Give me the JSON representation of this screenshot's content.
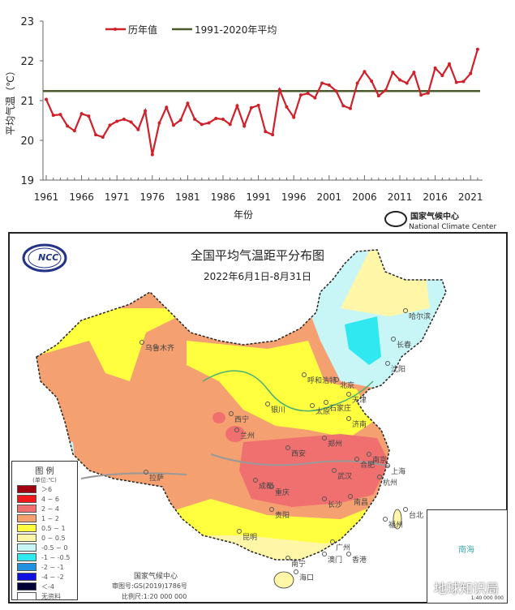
{
  "chart_data": {
    "type": "line",
    "ylabel": "平均气温（℃）",
    "xlabel": "年份",
    "ylim": [
      19,
      23
    ],
    "yticks": [
      19,
      20,
      21,
      22,
      23
    ],
    "xticks": [
      1961,
      1966,
      1971,
      1976,
      1981,
      1986,
      1991,
      1996,
      2001,
      2006,
      2011,
      2016,
      2021
    ],
    "grid": false,
    "legend_position": "top",
    "x": [
      1961,
      1962,
      1963,
      1964,
      1965,
      1966,
      1967,
      1968,
      1969,
      1970,
      1971,
      1972,
      1973,
      1974,
      1975,
      1976,
      1977,
      1978,
      1979,
      1980,
      1981,
      1982,
      1983,
      1984,
      1985,
      1986,
      1987,
      1988,
      1989,
      1990,
      1991,
      1992,
      1993,
      1994,
      1995,
      1996,
      1997,
      1998,
      1999,
      2000,
      2001,
      2002,
      2003,
      2004,
      2005,
      2006,
      2007,
      2008,
      2009,
      2010,
      2011,
      2012,
      2013,
      2014,
      2015,
      2016,
      2017,
      2018,
      2019,
      2020,
      2021,
      2022
    ],
    "series": [
      {
        "name": "历年值",
        "color": "#d0202a",
        "values": [
          21.03,
          20.63,
          20.65,
          20.36,
          20.24,
          20.67,
          20.61,
          20.14,
          20.08,
          20.38,
          20.48,
          20.53,
          20.46,
          20.27,
          20.74,
          19.64,
          20.44,
          20.83,
          20.38,
          20.51,
          20.93,
          20.53,
          20.4,
          20.44,
          20.55,
          20.53,
          20.4,
          20.87,
          20.36,
          20.82,
          20.88,
          20.22,
          20.14,
          21.27,
          20.84,
          20.58,
          21.14,
          21.18,
          21.07,
          21.44,
          21.39,
          21.24,
          20.87,
          20.8,
          21.44,
          21.73,
          21.49,
          21.12,
          21.26,
          21.71,
          21.52,
          21.44,
          21.71,
          21.14,
          21.19,
          21.82,
          21.63,
          21.92,
          21.46,
          21.48,
          21.68,
          22.29
        ]
      },
      {
        "name": "1991-2020年平均",
        "color": "#4a5a2a",
        "constant": 21.24
      }
    ]
  },
  "chart_logo": {
    "name_cn": "国家气候中心",
    "name_en": "National Climate Center"
  },
  "map": {
    "title": "全国平均气温距平分布图",
    "subtitle": "2022年6月1日-8月31日",
    "logo_text": "NCC",
    "legend": {
      "title": "图 例",
      "unit": "(单位:℃)",
      "items": [
        {
          "label": "＞6",
          "color": "#a00010"
        },
        {
          "label": "4 ~ 6",
          "color": "#f01818"
        },
        {
          "label": "2 ~ 4",
          "color": "#f07070"
        },
        {
          "label": "1 ~ 2",
          "color": "#f4a070"
        },
        {
          "label": "0.5 ~ 1",
          "color": "#ffff40"
        },
        {
          "label": "0 ~ 0.5",
          "color": "#fff6a8"
        },
        {
          "label": "-0.5 ~ 0",
          "color": "#c8f6f6"
        },
        {
          "label": "-1 ~ -0.5",
          "color": "#30e8f0"
        },
        {
          "label": "-2 ~ -1",
          "color": "#2090e0"
        },
        {
          "label": "-4 ~ -2",
          "color": "#1010e0"
        },
        {
          "label": "＜-4",
          "color": "#000038"
        },
        {
          "label": "无资料",
          "color": "#ffffff"
        }
      ]
    },
    "cities": [
      "乌鲁木齐",
      "拉萨",
      "西宁",
      "兰州",
      "银川",
      "呼和浩特",
      "北京",
      "天津",
      "石家庄",
      "太原",
      "济南",
      "郑州",
      "西安",
      "成都",
      "重庆",
      "武汉",
      "合肥",
      "南京",
      "上海",
      "杭州",
      "长沙",
      "南昌",
      "贵阳",
      "昆明",
      "南宁",
      "广州",
      "澳门",
      "香港",
      "海口",
      "福州",
      "台北",
      "哈尔滨",
      "长春",
      "沈阳"
    ],
    "footer": {
      "org": "国家气候中心",
      "approval": "审图号:GS(2019)1786号",
      "scale": "比例尺:1:20 000 000"
    },
    "inset": {
      "label": "南海",
      "scale": "1:40 000 000"
    },
    "watermark": "地球知识局"
  }
}
